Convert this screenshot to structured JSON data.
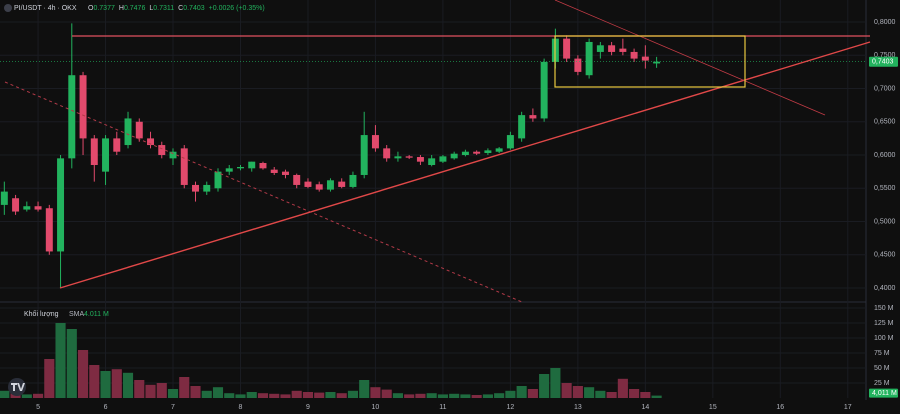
{
  "chart_data": [
    {
      "type": "candlestick",
      "title": "PI/USDT · 4h · OKX",
      "ohlc": [
        {
          "label": "O",
          "value": "0.7377"
        },
        {
          "label": "H",
          "value": "0.7476"
        },
        {
          "label": "L",
          "value": "0.7311"
        },
        {
          "label": "C",
          "value": "0.7403"
        }
      ],
      "change": "+0.0026 (+0.35%)",
      "up_color": "#22b35e",
      "down_color": "#e24a6c",
      "x": [
        4.5,
        4.6667,
        4.8333,
        5,
        5.1667,
        5.3333,
        5.5,
        5.6667,
        5.8333,
        6,
        6.1667,
        6.3333,
        6.5,
        6.6667,
        6.8333,
        7,
        7.1667,
        7.3333,
        7.5,
        7.6667,
        7.8333,
        8,
        8.1667,
        8.3333,
        8.5,
        8.6667,
        8.8333,
        9,
        9.1667,
        9.3333,
        9.5,
        9.6667,
        9.8333,
        10,
        10.1667,
        10.3333,
        10.5,
        10.6667,
        10.8333,
        11,
        11.1667,
        11.3333,
        11.5,
        11.6667,
        11.8333,
        12,
        12.1667,
        12.3333,
        12.5,
        12.6667,
        12.8333,
        13,
        13.1667,
        13.3333,
        13.5,
        13.6667,
        13.8333,
        14,
        14.1667
      ],
      "open": [
        0.525,
        0.535,
        0.518,
        0.523,
        0.52,
        0.455,
        0.595,
        0.72,
        0.625,
        0.575,
        0.625,
        0.615,
        0.65,
        0.625,
        0.615,
        0.595,
        0.61,
        0.555,
        0.545,
        0.55,
        0.575,
        0.58,
        0.58,
        0.588,
        0.578,
        0.575,
        0.57,
        0.56,
        0.556,
        0.548,
        0.56,
        0.552,
        0.57,
        0.63,
        0.61,
        0.595,
        0.598,
        0.597,
        0.585,
        0.59,
        0.595,
        0.6,
        0.605,
        0.603,
        0.605,
        0.61,
        0.625,
        0.66,
        0.655,
        0.74,
        0.775,
        0.745,
        0.72,
        0.755,
        0.765,
        0.76,
        0.755,
        0.748,
        0.7377
      ],
      "high": [
        0.56,
        0.54,
        0.53,
        0.53,
        0.525,
        0.6,
        0.798,
        0.725,
        0.63,
        0.63,
        0.635,
        0.665,
        0.655,
        0.635,
        0.62,
        0.61,
        0.615,
        0.56,
        0.56,
        0.58,
        0.585,
        0.585,
        0.59,
        0.59,
        0.582,
        0.578,
        0.572,
        0.565,
        0.56,
        0.565,
        0.565,
        0.575,
        0.665,
        0.645,
        0.615,
        0.605,
        0.6,
        0.6,
        0.6,
        0.6,
        0.605,
        0.608,
        0.607,
        0.61,
        0.612,
        0.635,
        0.665,
        0.67,
        0.745,
        0.79,
        0.78,
        0.75,
        0.775,
        0.77,
        0.77,
        0.775,
        0.76,
        0.765,
        0.7476
      ],
      "low": [
        0.51,
        0.51,
        0.515,
        0.515,
        0.45,
        0.4,
        0.58,
        0.6,
        0.56,
        0.555,
        0.6,
        0.61,
        0.62,
        0.61,
        0.595,
        0.585,
        0.55,
        0.53,
        0.54,
        0.545,
        0.57,
        0.577,
        0.575,
        0.578,
        0.57,
        0.565,
        0.55,
        0.55,
        0.545,
        0.545,
        0.55,
        0.55,
        0.565,
        0.605,
        0.59,
        0.59,
        0.594,
        0.585,
        0.583,
        0.588,
        0.593,
        0.598,
        0.6,
        0.6,
        0.603,
        0.608,
        0.62,
        0.65,
        0.65,
        0.73,
        0.74,
        0.72,
        0.715,
        0.745,
        0.75,
        0.75,
        0.74,
        0.73,
        0.7311
      ],
      "close": [
        0.545,
        0.515,
        0.523,
        0.518,
        0.455,
        0.595,
        0.72,
        0.625,
        0.585,
        0.625,
        0.605,
        0.655,
        0.625,
        0.615,
        0.6,
        0.605,
        0.555,
        0.545,
        0.555,
        0.575,
        0.58,
        0.582,
        0.59,
        0.58,
        0.573,
        0.57,
        0.555,
        0.552,
        0.548,
        0.562,
        0.552,
        0.57,
        0.63,
        0.61,
        0.595,
        0.598,
        0.596,
        0.59,
        0.595,
        0.598,
        0.602,
        0.605,
        0.602,
        0.607,
        0.61,
        0.63,
        0.66,
        0.655,
        0.74,
        0.775,
        0.745,
        0.725,
        0.77,
        0.765,
        0.755,
        0.755,
        0.745,
        0.742,
        0.7403
      ],
      "last_price": {
        "value": 0.7403,
        "label": "0,7403"
      },
      "xlim": [
        4.436,
        17.27
      ],
      "xticks": [
        5,
        6,
        7,
        8,
        9,
        10,
        11,
        12,
        13,
        14,
        15,
        16,
        17
      ],
      "ylim": [
        0.382,
        0.8331
      ],
      "yticks": [
        {
          "value": 0.4,
          "label": "0,4000"
        },
        {
          "value": 0.45,
          "label": "0,4500"
        },
        {
          "value": 0.5,
          "label": "0,5000"
        },
        {
          "value": 0.55,
          "label": "0,5500"
        },
        {
          "value": 0.6,
          "label": "0,6000"
        },
        {
          "value": 0.65,
          "label": "0,6500"
        },
        {
          "value": 0.7,
          "label": "0,7000"
        },
        {
          "value": 0.75,
          "label": "0,7500"
        },
        {
          "value": 0.8,
          "label": "0,8000"
        }
      ]
    },
    {
      "type": "bar",
      "title": "Khối lượng",
      "subtitle": "SMA",
      "sma": {
        "value": 4.011,
        "label": "4.011 M"
      },
      "values": [
        12,
        8,
        6,
        7,
        65,
        125,
        115,
        80,
        55,
        45,
        48,
        42,
        30,
        22,
        25,
        15,
        35,
        20,
        12,
        18,
        8,
        6,
        10,
        8,
        7,
        6,
        12,
        10,
        9,
        10,
        8,
        12,
        30,
        18,
        14,
        8,
        6,
        7,
        8,
        6,
        7,
        6,
        5,
        6,
        8,
        12,
        20,
        15,
        40,
        50,
        25,
        20,
        18,
        12,
        10,
        32,
        15,
        10,
        4.011
      ],
      "up_color": "#1f6b3f",
      "down_color": "#7e2b42",
      "last_value": {
        "value": 4.011,
        "label": "4,011 M"
      },
      "ylim": [
        0,
        160
      ],
      "yticks": [
        {
          "value": 25,
          "label": "25 M"
        },
        {
          "value": 50,
          "label": "50 M"
        },
        {
          "value": 75,
          "label": "75 M"
        },
        {
          "value": 100,
          "label": "100 M"
        },
        {
          "value": 125,
          "label": "125 M"
        },
        {
          "value": 150,
          "label": "150 M"
        }
      ]
    }
  ]
}
